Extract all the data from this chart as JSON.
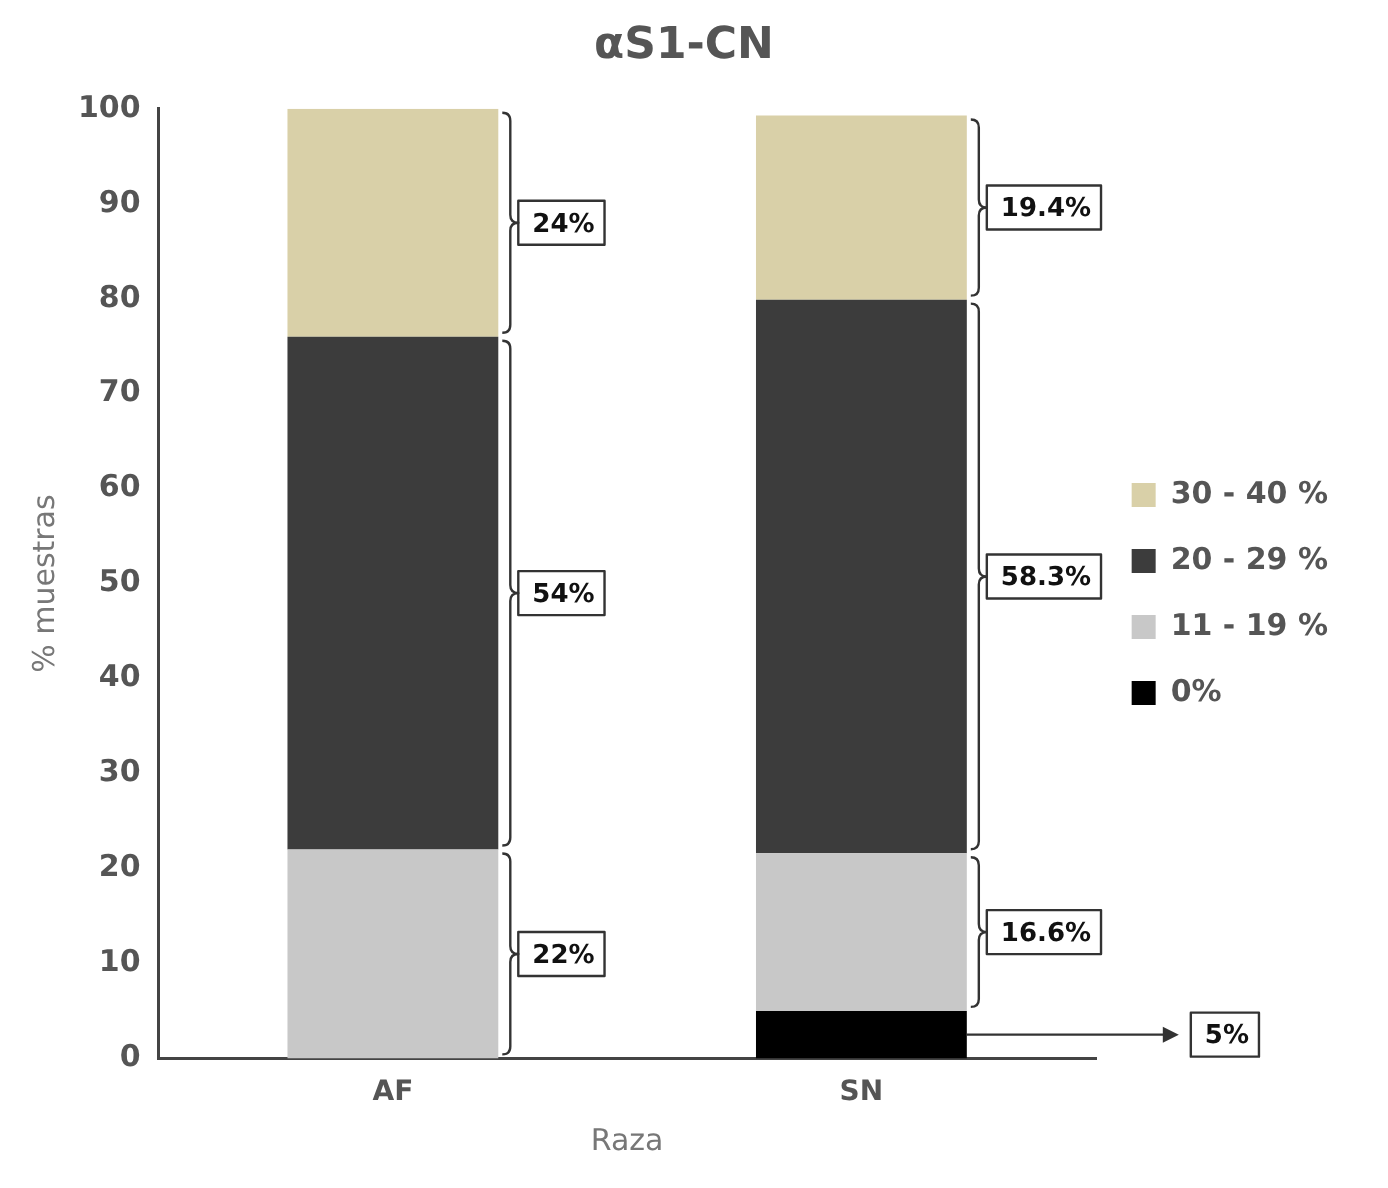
{
  "chart_data": {
    "type": "bar",
    "title": "αS1-CN",
    "xlabel": "Raza",
    "ylabel": "% muestras",
    "categories": [
      "AF",
      "SN"
    ],
    "stacked": true,
    "ylim": [
      0,
      100
    ],
    "yticks": [
      0,
      10,
      20,
      30,
      40,
      50,
      60,
      70,
      80,
      90,
      100
    ],
    "grid": false,
    "legend": "right",
    "series": [
      {
        "name": "0%",
        "color": "#000000",
        "values": [
          null,
          5
        ]
      },
      {
        "name": "11 - 19 %",
        "color": "#c8c8c8",
        "values": [
          22,
          16.6
        ]
      },
      {
        "name": "20 - 29 %",
        "color": "#3c3c3c",
        "values": [
          54,
          58.3
        ]
      },
      {
        "name": "30 - 40 %",
        "color": "#d9d0a8",
        "values": [
          24,
          19.4
        ]
      }
    ],
    "annotations": [
      "24%",
      "54%",
      "22%",
      "19.4%",
      "58.3%",
      "16.6%",
      "5%"
    ]
  }
}
